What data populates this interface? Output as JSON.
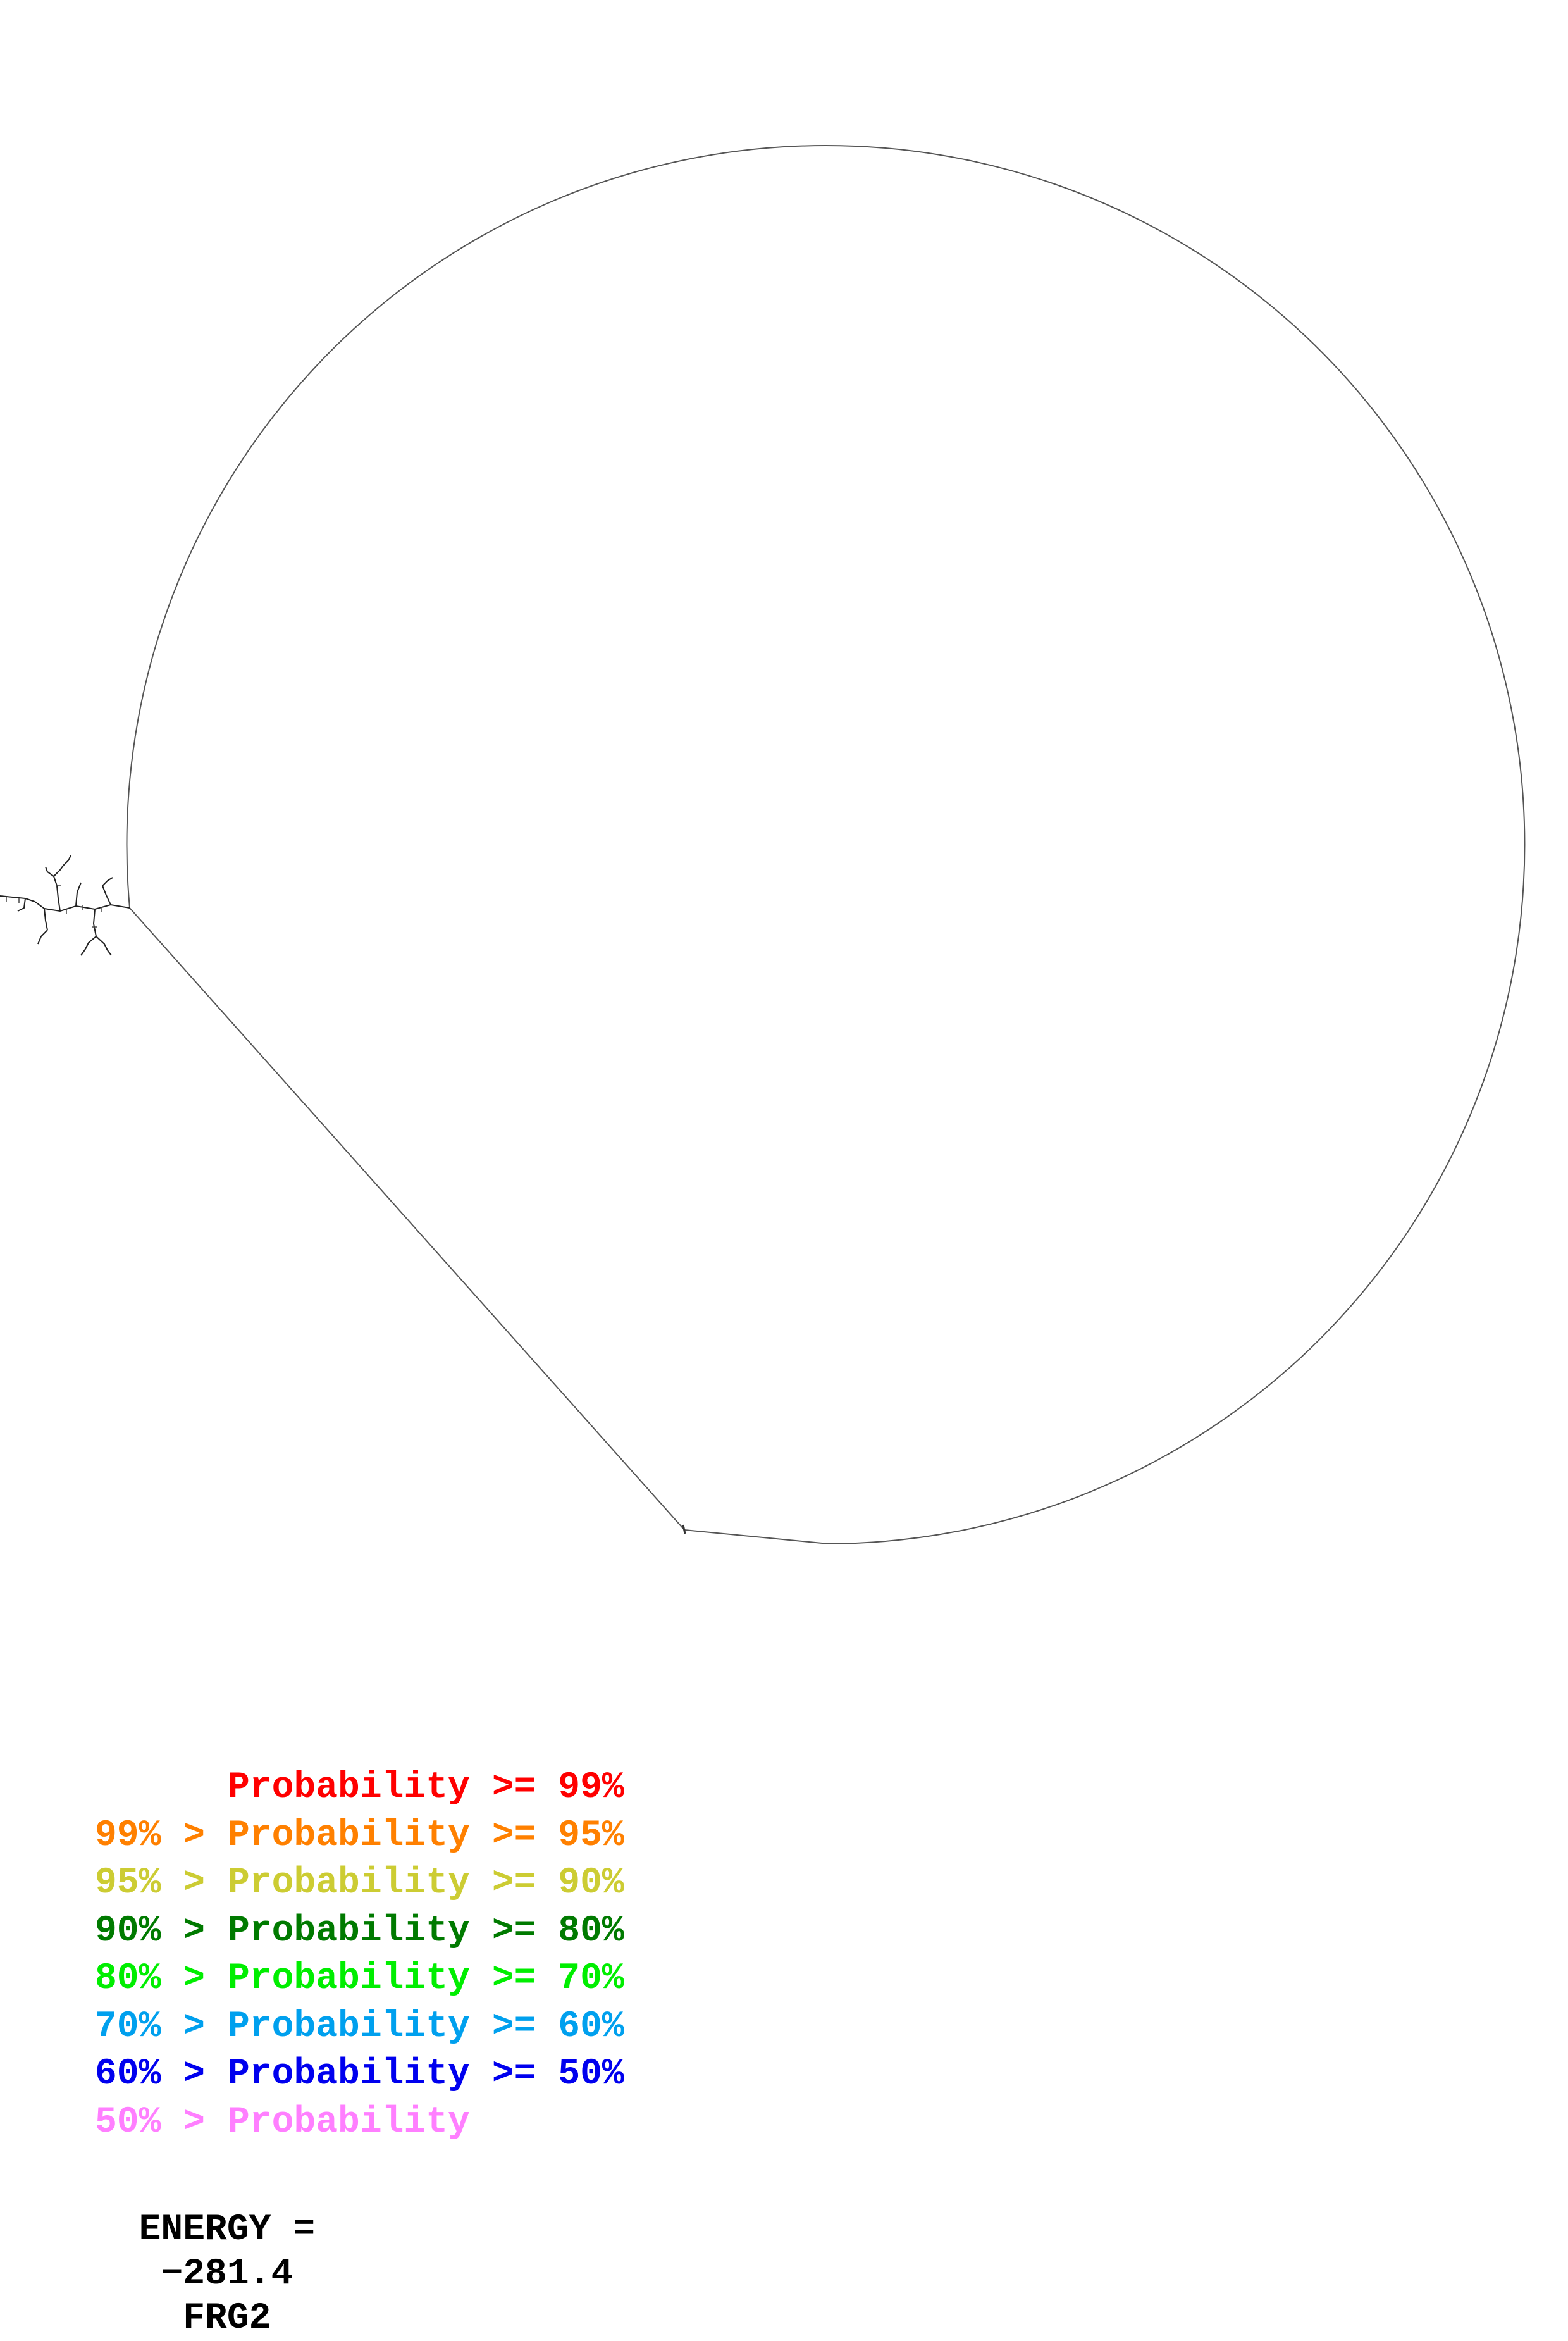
{
  "legend": {
    "rows": [
      {
        "prefix": "",
        "label": "Probability",
        "suffix": ">= 99%",
        "color": "#ff0000"
      },
      {
        "prefix": "99% >",
        "label": "Probability",
        "suffix": ">= 95%",
        "color": "#ff8000"
      },
      {
        "prefix": "95% >",
        "label": "Probability",
        "suffix": ">= 90%",
        "color": "#cccc33"
      },
      {
        "prefix": "90% >",
        "label": "Probability",
        "suffix": ">= 80%",
        "color": "#007a00"
      },
      {
        "prefix": "80% >",
        "label": "Probability",
        "suffix": ">= 70%",
        "color": "#00ee00"
      },
      {
        "prefix": "70% >",
        "label": "Probability",
        "suffix": ">= 60%",
        "color": "#00a0ee"
      },
      {
        "prefix": "60% >",
        "label": "Probability",
        "suffix": ">= 50%",
        "color": "#0000ee"
      },
      {
        "prefix": "50% >",
        "label": "Probability",
        "suffix": "",
        "color": "#ff7fff"
      }
    ]
  },
  "footer": {
    "energy_label": "ENERGY =",
    "energy_value": "−281.4",
    "fragment_name": "FRG2"
  },
  "diagram": {
    "type": "rna-secondary-structure",
    "line_color": "#333333",
    "backbone_shape": "large-loop"
  }
}
